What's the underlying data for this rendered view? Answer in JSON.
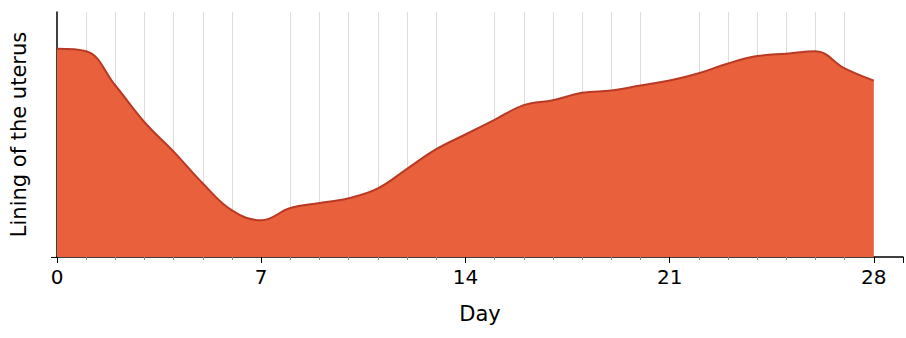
{
  "chart_data": {
    "type": "area",
    "x_label": "Day",
    "y_label": "Lining of the uterus",
    "x": [
      0,
      1,
      2,
      3,
      4,
      5,
      6,
      7,
      8,
      9,
      10,
      11,
      12,
      13,
      14,
      15,
      16,
      17,
      18,
      19,
      20,
      21,
      22,
      23,
      24,
      25,
      26,
      27,
      28
    ],
    "values": [
      85,
      84,
      70,
      55,
      43,
      30,
      19,
      15,
      20,
      22,
      24,
      28,
      36,
      44,
      50,
      56,
      62,
      64,
      67,
      68,
      70,
      72,
      75,
      79,
      82,
      83,
      84,
      77,
      72
    ],
    "color": "#e8603c",
    "xlim": [
      0,
      29
    ],
    "xticks": [
      0,
      7,
      14,
      21,
      28
    ],
    "ylim": [
      0,
      100
    ],
    "yticks": [
      0
    ],
    "grid": true,
    "tick_labels": "x"
  }
}
